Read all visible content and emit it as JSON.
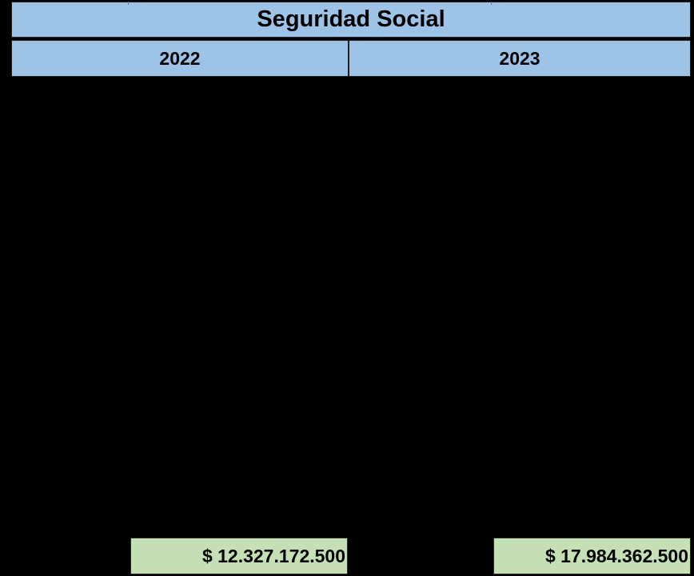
{
  "table": {
    "title": "Seguridad Social",
    "columns": [
      {
        "year": "2022",
        "total": "$ 12.327.172.500"
      },
      {
        "year": "2023",
        "total": "$ 17.984.362.500"
      }
    ]
  },
  "colors": {
    "header_fill": "#9dc3e6",
    "total_fill": "#c5e0b4",
    "background": "#000000"
  }
}
